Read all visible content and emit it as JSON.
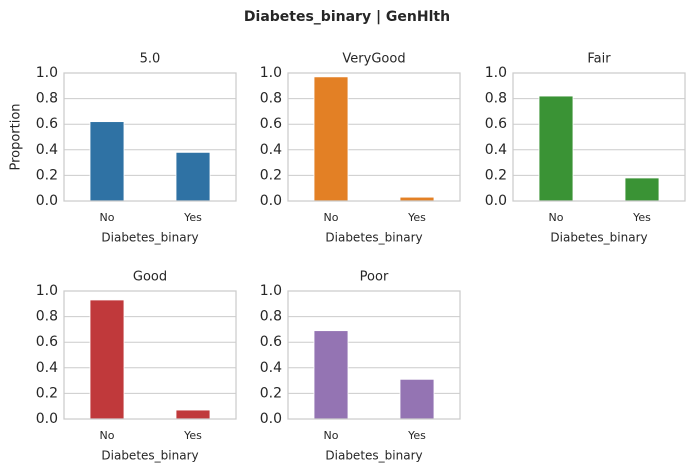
{
  "title": "Diabetes_binary | GenHlth",
  "colors": {
    "grid": "#cccccc",
    "frame": "#cccccc",
    "text": "#262626",
    "background": "#ffffff"
  },
  "chart_data": [
    {
      "type": "bar",
      "title": "5.0",
      "xlabel": "Diabetes_binary",
      "ylabel": "Proportion",
      "categories": [
        "No",
        "Yes"
      ],
      "values": [
        0.62,
        0.38
      ],
      "ylim": [
        0,
        1.0
      ],
      "yticks": [
        "0.0",
        "0.2",
        "0.4",
        "0.6",
        "0.8",
        "1.0"
      ],
      "color": "#2f72a4",
      "grid": true
    },
    {
      "type": "bar",
      "title": "VeryGood",
      "xlabel": "Diabetes_binary",
      "ylabel": "",
      "categories": [
        "No",
        "Yes"
      ],
      "values": [
        0.97,
        0.03
      ],
      "ylim": [
        0,
        1.0
      ],
      "yticks": [
        "0.0",
        "0.2",
        "0.4",
        "0.6",
        "0.8",
        "1.0"
      ],
      "color": "#e38025",
      "grid": true
    },
    {
      "type": "bar",
      "title": "Fair",
      "xlabel": "Diabetes_binary",
      "ylabel": "",
      "categories": [
        "No",
        "Yes"
      ],
      "values": [
        0.82,
        0.18
      ],
      "ylim": [
        0,
        1.0
      ],
      "yticks": [
        "0.0",
        "0.2",
        "0.4",
        "0.6",
        "0.8",
        "1.0"
      ],
      "color": "#3a9335",
      "grid": true
    },
    {
      "type": "bar",
      "title": "Good",
      "xlabel": "Diabetes_binary",
      "ylabel": "",
      "categories": [
        "No",
        "Yes"
      ],
      "values": [
        0.93,
        0.07
      ],
      "ylim": [
        0,
        1.0
      ],
      "yticks": [
        "0.0",
        "0.2",
        "0.4",
        "0.6",
        "0.8",
        "1.0"
      ],
      "color": "#c0393b",
      "grid": true
    },
    {
      "type": "bar",
      "title": "Poor",
      "xlabel": "Diabetes_binary",
      "ylabel": "",
      "categories": [
        "No",
        "Yes"
      ],
      "values": [
        0.69,
        0.31
      ],
      "ylim": [
        0,
        1.0
      ],
      "yticks": [
        "0.0",
        "0.2",
        "0.4",
        "0.6",
        "0.8",
        "1.0"
      ],
      "color": "#9474b3",
      "grid": true
    }
  ]
}
